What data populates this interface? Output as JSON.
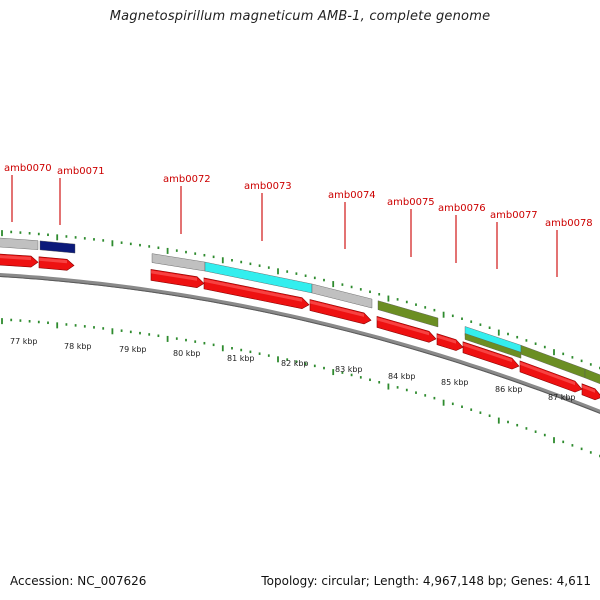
{
  "title": "Magnetospirillum magneticum AMB-1, complete genome",
  "accession_text": "Accession: NC_007626",
  "summary_text": "Topology: circular; Length: 4,967,148 bp; Genes: 4,611",
  "colors": {
    "backbone": "#888888",
    "tick": "#2e8b2e",
    "gene_label": "#cc0000",
    "cds_red": "#ee1111",
    "feature_grey": "#c0c0c0",
    "feature_cyan": "#33eeee",
    "feature_olive": "#6b8e23",
    "feature_navy": "#0b1a7a"
  },
  "scale_labels": [
    "77 kbp",
    "78 kbp",
    "79 kbp",
    "80 kbp",
    "81 kbp",
    "82 kbp",
    "83 kbp",
    "84 kbp",
    "85 kbp",
    "86 kbp",
    "87 kbp"
  ],
  "genes": [
    {
      "name": "amb0070"
    },
    {
      "name": "amb0071"
    },
    {
      "name": "amb0072"
    },
    {
      "name": "amb0073"
    },
    {
      "name": "amb0074"
    },
    {
      "name": "amb0075"
    },
    {
      "name": "amb0076"
    },
    {
      "name": "amb0077"
    },
    {
      "name": "amb0078"
    }
  ]
}
